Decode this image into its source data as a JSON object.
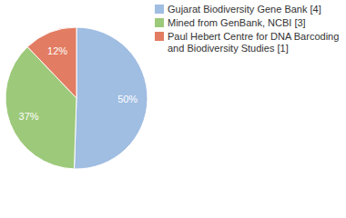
{
  "chart_data": {
    "type": "pie",
    "categories": [
      "Gujarat Biodiversity Gene Bank [4]",
      "Mined from GenBank, NCBI [3]",
      "Paul Hebert Centre for DNA Barcoding and Biodiversity Studies [1]"
    ],
    "values": [
      50,
      37,
      12
    ],
    "value_labels": [
      "50%",
      "37%",
      "12%"
    ],
    "colors": [
      "#a0bde2",
      "#9dc97a",
      "#e27c62"
    ],
    "data_labels": true,
    "legend": "top-right"
  }
}
